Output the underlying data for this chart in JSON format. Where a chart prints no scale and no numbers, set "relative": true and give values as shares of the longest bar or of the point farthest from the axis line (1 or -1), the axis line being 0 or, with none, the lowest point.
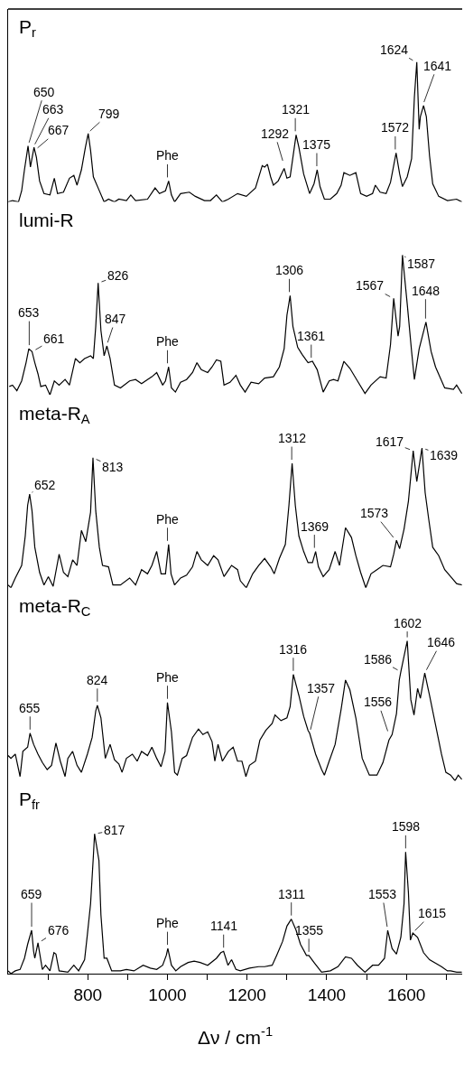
{
  "chart_data": [
    {
      "type": "line",
      "title": "P$_{r}$",
      "relative": true,
      "color": "#000000",
      "marker": "none",
      "tick_labels": false,
      "xlim": [
        600,
        1740
      ],
      "x": [
        600,
        611,
        626,
        634,
        641,
        650,
        656,
        665,
        671,
        679,
        690,
        705,
        716,
        724,
        739,
        754,
        765,
        773,
        784,
        794,
        801,
        807,
        814,
        826,
        841,
        852,
        867,
        878,
        897,
        908,
        920,
        950,
        969,
        980,
        995,
        1003,
        1010,
        1018,
        1033,
        1055,
        1070,
        1093,
        1108,
        1123,
        1138,
        1153,
        1176,
        1198,
        1221,
        1238,
        1244,
        1251,
        1259,
        1266,
        1278,
        1293,
        1300,
        1308,
        1315,
        1323,
        1330,
        1342,
        1357,
        1368,
        1376,
        1383,
        1394,
        1409,
        1425,
        1436,
        1443,
        1458,
        1473,
        1485,
        1500,
        1515,
        1522,
        1534,
        1549,
        1560,
        1574,
        1583,
        1590,
        1602,
        1613,
        1620,
        1626,
        1632,
        1635,
        1643,
        1650,
        1658,
        1666,
        1681,
        1703,
        1726,
        1739
      ],
      "values": [
        0,
        0.01,
        0,
        0.08,
        0.23,
        0.4,
        0.25,
        0.39,
        0.32,
        0.15,
        0.06,
        0.05,
        0.17,
        0.06,
        0.07,
        0.17,
        0.19,
        0.12,
        0.23,
        0.39,
        0.49,
        0.37,
        0.18,
        0.1,
        0,
        0.02,
        0,
        0.02,
        0.01,
        0.05,
        0.01,
        0.02,
        0.1,
        0.06,
        0.08,
        0.15,
        0.05,
        0,
        0.06,
        0.07,
        0.04,
        0.01,
        0.01,
        0.05,
        0,
        0.02,
        0.06,
        0.04,
        0.1,
        0.26,
        0.25,
        0.27,
        0.18,
        0.12,
        0.15,
        0.24,
        0.17,
        0.18,
        0.32,
        0.48,
        0.39,
        0.2,
        0.06,
        0.13,
        0.23,
        0.11,
        0.02,
        0.02,
        0.06,
        0.12,
        0.21,
        0.19,
        0.21,
        0.06,
        0.04,
        0.06,
        0.12,
        0.07,
        0.06,
        0.14,
        0.35,
        0.2,
        0.11,
        0.18,
        0.31,
        0.75,
        1.0,
        0.52,
        0.61,
        0.69,
        0.61,
        0.33,
        0.13,
        0.04,
        0.01,
        0.02,
        0
      ],
      "annotations": [
        {
          "text": "650",
          "x": 650,
          "y": 0.4
        },
        {
          "text": "663",
          "x": 663,
          "y": 0.39
        },
        {
          "text": "667",
          "x": 667,
          "y": 0.37
        },
        {
          "text": "799",
          "x": 799,
          "y": 0.49
        },
        {
          "text": "Phe",
          "x": 1000,
          "y": 0.15
        },
        {
          "text": "1292",
          "x": 1292,
          "y": 0.27
        },
        {
          "text": "1321",
          "x": 1321,
          "y": 0.48
        },
        {
          "text": "1375",
          "x": 1375,
          "y": 0.23
        },
        {
          "text": "1572",
          "x": 1572,
          "y": 0.35
        },
        {
          "text": "1624",
          "x": 1624,
          "y": 1.0
        },
        {
          "text": "1641",
          "x": 1641,
          "y": 0.69
        }
      ]
    },
    {
      "type": "line",
      "title": "lumi-R",
      "relative": true,
      "color": "#000000",
      "marker": "none",
      "tick_labels": false,
      "xlim": [
        600,
        1740
      ],
      "x": [
        603,
        611,
        622,
        634,
        645,
        652,
        660,
        667,
        675,
        682,
        694,
        705,
        716,
        728,
        743,
        754,
        769,
        780,
        792,
        807,
        814,
        820,
        826,
        833,
        841,
        848,
        856,
        867,
        882,
        905,
        920,
        935,
        950,
        961,
        973,
        988,
        995,
        1003,
        1010,
        1020,
        1033,
        1048,
        1063,
        1074,
        1085,
        1101,
        1112,
        1123,
        1134,
        1142,
        1157,
        1172,
        1183,
        1195,
        1210,
        1229,
        1244,
        1266,
        1281,
        1293,
        1300,
        1308,
        1315,
        1327,
        1338,
        1353,
        1364,
        1376,
        1391,
        1406,
        1417,
        1428,
        1443,
        1458,
        1477,
        1496,
        1511,
        1534,
        1549,
        1560,
        1568,
        1579,
        1583,
        1590,
        1602,
        1613,
        1620,
        1632,
        1649,
        1662,
        1673,
        1696,
        1718,
        1726,
        1739
      ],
      "values": [
        0.06,
        0.07,
        0.03,
        0.1,
        0.23,
        0.33,
        0.31,
        0.23,
        0.15,
        0.06,
        0.07,
        0,
        0.1,
        0.07,
        0.11,
        0.07,
        0.26,
        0.23,
        0.26,
        0.28,
        0.26,
        0.49,
        0.8,
        0.46,
        0.28,
        0.35,
        0.26,
        0.07,
        0.05,
        0.1,
        0.11,
        0.08,
        0.11,
        0.13,
        0.16,
        0.07,
        0.1,
        0.2,
        0.05,
        0.02,
        0.09,
        0.11,
        0.16,
        0.23,
        0.18,
        0.16,
        0.2,
        0.25,
        0.24,
        0.07,
        0.09,
        0.14,
        0.07,
        0.02,
        0.09,
        0.08,
        0.12,
        0.13,
        0.2,
        0.33,
        0.57,
        0.71,
        0.49,
        0.34,
        0.29,
        0.23,
        0.24,
        0.18,
        0.02,
        0.1,
        0.11,
        0.1,
        0.24,
        0.19,
        0.1,
        0.01,
        0.07,
        0.13,
        0.12,
        0.36,
        0.69,
        0.42,
        0.49,
        1.0,
        0.65,
        0.31,
        0.11,
        0.33,
        0.52,
        0.31,
        0.2,
        0.05,
        0.04,
        0.07,
        0.01
      ],
      "annotations": [
        {
          "text": "653",
          "x": 653,
          "y": 0.33
        },
        {
          "text": "661",
          "x": 661,
          "y": 0.31
        },
        {
          "text": "826",
          "x": 826,
          "y": 0.8
        },
        {
          "text": "847",
          "x": 847,
          "y": 0.35
        },
        {
          "text": "Phe",
          "x": 1000,
          "y": 0.2
        },
        {
          "text": "1306",
          "x": 1306,
          "y": 0.71
        },
        {
          "text": "1361",
          "x": 1361,
          "y": 0.24
        },
        {
          "text": "1567",
          "x": 1567,
          "y": 0.69
        },
        {
          "text": "1587",
          "x": 1587,
          "y": 1.0
        },
        {
          "text": "1648",
          "x": 1648,
          "y": 0.52
        }
      ]
    },
    {
      "type": "line",
      "title": "meta-R$_{A}$",
      "relative": true,
      "color": "#000000",
      "marker": "none",
      "tick_labels": false,
      "xlim": [
        600,
        1740
      ],
      "x": [
        600,
        607,
        618,
        634,
        643,
        649,
        654,
        660,
        667,
        679,
        690,
        701,
        713,
        728,
        739,
        750,
        762,
        773,
        784,
        795,
        807,
        813,
        820,
        829,
        837,
        852,
        863,
        882,
        905,
        920,
        935,
        950,
        961,
        973,
        984,
        995,
        1003,
        1009,
        1018,
        1033,
        1048,
        1063,
        1074,
        1085,
        1101,
        1116,
        1127,
        1142,
        1161,
        1176,
        1183,
        1198,
        1214,
        1229,
        1244,
        1259,
        1268,
        1281,
        1296,
        1305,
        1313,
        1321,
        1330,
        1342,
        1353,
        1364,
        1372,
        1379,
        1391,
        1406,
        1421,
        1432,
        1447,
        1462,
        1473,
        1485,
        1498,
        1511,
        1526,
        1541,
        1560,
        1568,
        1575,
        1583,
        1594,
        1605,
        1617,
        1626,
        1639,
        1647,
        1656,
        1666,
        1681,
        1696,
        1711,
        1726,
        1739
      ],
      "values": [
        0.02,
        0,
        0.07,
        0.16,
        0.37,
        0.59,
        0.67,
        0.55,
        0.29,
        0.11,
        0.02,
        0.08,
        0.01,
        0.24,
        0.11,
        0.08,
        0.2,
        0.16,
        0.41,
        0.33,
        0.54,
        0.93,
        0.55,
        0.29,
        0.16,
        0.15,
        0.02,
        0.02,
        0.07,
        0.02,
        0.13,
        0.1,
        0.16,
        0.26,
        0.1,
        0.1,
        0.31,
        0.1,
        0.02,
        0.07,
        0.09,
        0.15,
        0.26,
        0.2,
        0.16,
        0.23,
        0.2,
        0.08,
        0.16,
        0.13,
        0.05,
        0,
        0.1,
        0.16,
        0.21,
        0.15,
        0.1,
        0.21,
        0.31,
        0.59,
        0.89,
        0.59,
        0.37,
        0.26,
        0.18,
        0.18,
        0.26,
        0.15,
        0.08,
        0.13,
        0.26,
        0.16,
        0.43,
        0.36,
        0.23,
        0.11,
        0,
        0.1,
        0.13,
        0.16,
        0.15,
        0.24,
        0.34,
        0.28,
        0.42,
        0.62,
        0.98,
        0.76,
        1.0,
        0.68,
        0.49,
        0.29,
        0.23,
        0.13,
        0.08,
        0.03,
        0.02
      ],
      "annotations": [
        {
          "text": "652",
          "x": 652,
          "y": 0.67
        },
        {
          "text": "813",
          "x": 813,
          "y": 0.93
        },
        {
          "text": "Phe",
          "x": 1000,
          "y": 0.31
        },
        {
          "text": "1312",
          "x": 1312,
          "y": 0.89
        },
        {
          "text": "1369",
          "x": 1369,
          "y": 0.26
        },
        {
          "text": "1573",
          "x": 1573,
          "y": 0.34
        },
        {
          "text": "1617",
          "x": 1617,
          "y": 0.98
        },
        {
          "text": "1639",
          "x": 1639,
          "y": 1.0
        }
      ]
    },
    {
      "type": "line",
      "title": "meta-R$_{C}$",
      "relative": true,
      "color": "#000000",
      "marker": "none",
      "tick_labels": false,
      "xlim": [
        600,
        1740
      ],
      "x": [
        600,
        607,
        618,
        630,
        637,
        649,
        655,
        664,
        675,
        686,
        698,
        709,
        720,
        731,
        743,
        750,
        762,
        773,
        784,
        799,
        811,
        820,
        824,
        833,
        844,
        856,
        867,
        878,
        886,
        897,
        912,
        924,
        935,
        950,
        961,
        973,
        984,
        994,
        1000,
        1010,
        1018,
        1025,
        1037,
        1048,
        1063,
        1078,
        1089,
        1101,
        1112,
        1119,
        1127,
        1138,
        1153,
        1165,
        1176,
        1187,
        1197,
        1206,
        1221,
        1232,
        1247,
        1263,
        1270,
        1285,
        1300,
        1308,
        1316,
        1330,
        1342,
        1353,
        1357,
        1372,
        1387,
        1394,
        1406,
        1421,
        1436,
        1447,
        1458,
        1473,
        1489,
        1507,
        1526,
        1541,
        1556,
        1564,
        1575,
        1582,
        1586,
        1602,
        1611,
        1619,
        1628,
        1635,
        1646,
        1658,
        1673,
        1688,
        1699,
        1711,
        1722,
        1730,
        1739
      ],
      "values": [
        0.18,
        0.16,
        0.19,
        0.03,
        0.21,
        0.24,
        0.34,
        0.26,
        0.19,
        0.13,
        0.08,
        0.11,
        0.27,
        0.14,
        0.03,
        0.16,
        0.21,
        0.11,
        0.06,
        0.19,
        0.31,
        0.5,
        0.54,
        0.45,
        0.16,
        0.26,
        0.15,
        0.12,
        0.06,
        0.16,
        0.19,
        0.14,
        0.21,
        0.18,
        0.24,
        0.16,
        0.1,
        0.21,
        0.56,
        0.35,
        0.06,
        0.04,
        0.16,
        0.18,
        0.31,
        0.37,
        0.33,
        0.35,
        0.28,
        0.14,
        0.26,
        0.14,
        0.21,
        0.24,
        0.14,
        0.14,
        0.03,
        0.11,
        0.14,
        0.29,
        0.36,
        0.41,
        0.47,
        0.43,
        0.45,
        0.53,
        0.76,
        0.61,
        0.46,
        0.36,
        0.34,
        0.19,
        0.08,
        0.04,
        0.14,
        0.26,
        0.51,
        0.72,
        0.65,
        0.45,
        0.16,
        0.04,
        0.04,
        0.13,
        0.29,
        0.33,
        0.48,
        0.72,
        0.78,
        1.0,
        0.58,
        0.47,
        0.66,
        0.59,
        0.77,
        0.61,
        0.4,
        0.19,
        0.06,
        0.04,
        0,
        0.04,
        0.01
      ],
      "annotations": [
        {
          "text": "655",
          "x": 655,
          "y": 0.34
        },
        {
          "text": "824",
          "x": 824,
          "y": 0.54
        },
        {
          "text": "Phe",
          "x": 1000,
          "y": 0.56
        },
        {
          "text": "1316",
          "x": 1316,
          "y": 0.76
        },
        {
          "text": "1357",
          "x": 1357,
          "y": 0.34
        },
        {
          "text": "1556",
          "x": 1556,
          "y": 0.33
        },
        {
          "text": "1586",
          "x": 1586,
          "y": 0.78
        },
        {
          "text": "1602",
          "x": 1602,
          "y": 1.0
        },
        {
          "text": "1646",
          "x": 1646,
          "y": 0.77
        }
      ]
    },
    {
      "type": "line",
      "title": "P$_{fr}$",
      "relative": true,
      "color": "#000000",
      "marker": "none",
      "tick_labels": "x",
      "xlim": [
        600,
        1740
      ],
      "xticks": [
        {
          "value": 700,
          "label": null
        },
        800,
        {
          "value": 900,
          "label": null
        },
        1000,
        {
          "value": 1100,
          "label": null
        },
        1200,
        {
          "value": 1300,
          "label": null
        },
        1400,
        {
          "value": 1500,
          "label": null
        },
        1600,
        {
          "value": 1700,
          "label": null
        }
      ],
      "xlabel": "Δν / cm$^{-1}$",
      "x": [
        600,
        607,
        618,
        630,
        641,
        649,
        659,
        664,
        667,
        675,
        679,
        686,
        694,
        705,
        715,
        720,
        728,
        750,
        765,
        777,
        792,
        799,
        807,
        814,
        817,
        828,
        833,
        841,
        848,
        860,
        882,
        897,
        916,
        939,
        957,
        973,
        988,
        997,
        1001,
        1010,
        1021,
        1033,
        1052,
        1067,
        1082,
        1101,
        1123,
        1134,
        1141,
        1152,
        1161,
        1172,
        1183,
        1206,
        1229,
        1244,
        1263,
        1274,
        1289,
        1300,
        1311,
        1323,
        1334,
        1349,
        1355,
        1368,
        1387,
        1409,
        1428,
        1447,
        1462,
        1477,
        1496,
        1515,
        1530,
        1545,
        1553,
        1564,
        1575,
        1586,
        1594,
        1598,
        1605,
        1610,
        1616,
        1628,
        1643,
        1658,
        1688,
        1703,
        1711,
        1726,
        1739
      ],
      "values": [
        0.02,
        0,
        0.02,
        0.03,
        0.11,
        0.21,
        0.31,
        0.16,
        0.11,
        0.22,
        0.15,
        0.03,
        0.06,
        0.02,
        0.15,
        0.14,
        0.02,
        0.01,
        0.06,
        0.02,
        0.1,
        0.28,
        0.5,
        0.84,
        1.0,
        0.81,
        0.42,
        0.11,
        0.11,
        0.02,
        0.02,
        0.03,
        0.02,
        0.06,
        0.04,
        0.03,
        0.06,
        0.13,
        0.18,
        0.06,
        0.02,
        0.05,
        0.08,
        0.09,
        0.08,
        0.06,
        0.11,
        0.15,
        0.16,
        0.06,
        0.1,
        0.03,
        0.02,
        0.04,
        0.05,
        0.05,
        0.06,
        0.13,
        0.23,
        0.34,
        0.39,
        0.31,
        0.21,
        0.13,
        0.13,
        0.08,
        0.01,
        0.02,
        0.05,
        0.12,
        0.11,
        0.06,
        0.01,
        0.06,
        0.06,
        0.11,
        0.31,
        0.18,
        0.14,
        0.26,
        0.5,
        0.87,
        0.58,
        0.24,
        0.29,
        0.26,
        0.15,
        0.1,
        0.05,
        0.02,
        0.02,
        0.01,
        0.01
      ],
      "annotations": [
        {
          "text": "659",
          "x": 659,
          "y": 0.31
        },
        {
          "text": "676",
          "x": 676,
          "y": 0.22
        },
        {
          "text": "817",
          "x": 817,
          "y": 1.0
        },
        {
          "text": "Phe",
          "x": 1000,
          "y": 0.18
        },
        {
          "text": "1141",
          "x": 1141,
          "y": 0.16
        },
        {
          "text": "1311",
          "x": 1311,
          "y": 0.39
        },
        {
          "text": "1355",
          "x": 1355,
          "y": 0.13
        },
        {
          "text": "1553",
          "x": 1553,
          "y": 0.31
        },
        {
          "text": "1598",
          "x": 1598,
          "y": 0.87
        },
        {
          "text": "1615",
          "x": 1615,
          "y": 0.29
        }
      ]
    }
  ]
}
